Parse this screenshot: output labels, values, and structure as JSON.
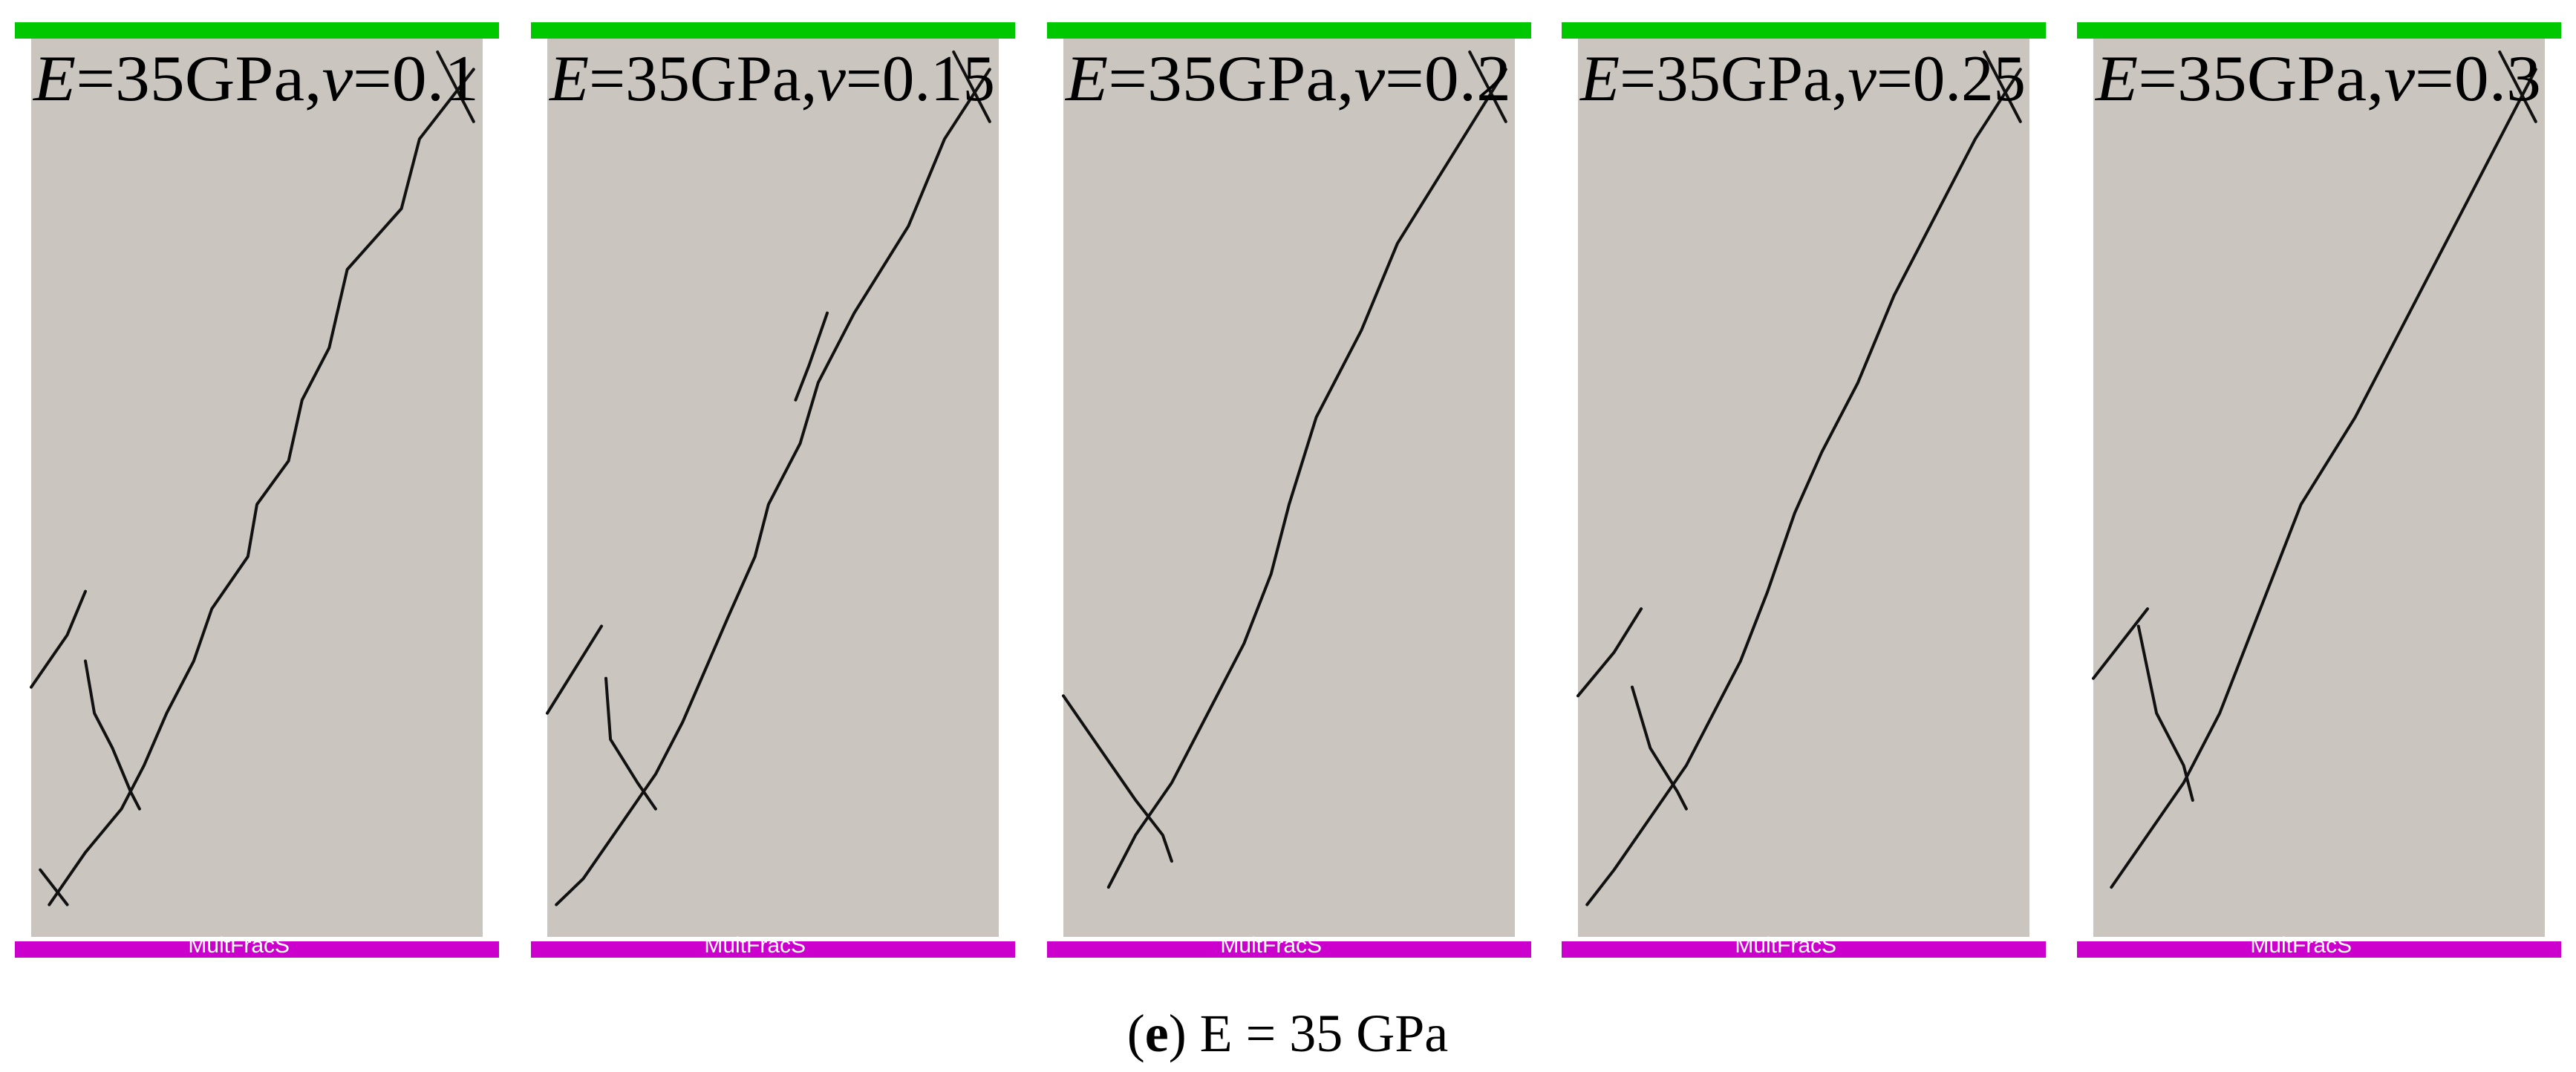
{
  "colors": {
    "specimen": "#cac6bf",
    "top_platen": "#00c800",
    "bottom_platen": "#cc00cc",
    "crack": "#111111",
    "label_text": "#000000",
    "watermark": "#ffffff"
  },
  "panels": [
    {
      "label": {
        "e_symbol": "E",
        "e_value": "=35GPa,",
        "v_symbol": "v",
        "v_value": "=0.1"
      },
      "watermark": "MultFracS"
    },
    {
      "label": {
        "e_symbol": "E",
        "e_value": "=35GPa,",
        "v_symbol": "v",
        "v_value": "=0.15"
      },
      "watermark": "MultFracS"
    },
    {
      "label": {
        "e_symbol": "E",
        "e_value": "=35GPa,",
        "v_symbol": "v",
        "v_value": "=0.2"
      },
      "watermark": "MultFracS"
    },
    {
      "label": {
        "e_symbol": "E",
        "e_value": "=35GPa,",
        "v_symbol": "v",
        "v_value": "=0.25"
      },
      "watermark": "MultFracS"
    },
    {
      "label": {
        "e_symbol": "E",
        "e_value": "=35GPa,",
        "v_symbol": "v",
        "v_value": "=0.3"
      },
      "watermark": "MultFracS"
    }
  ],
  "caption": {
    "letter": "e",
    "open": "(",
    "close": ")",
    "text": " E = 35 GPa"
  }
}
